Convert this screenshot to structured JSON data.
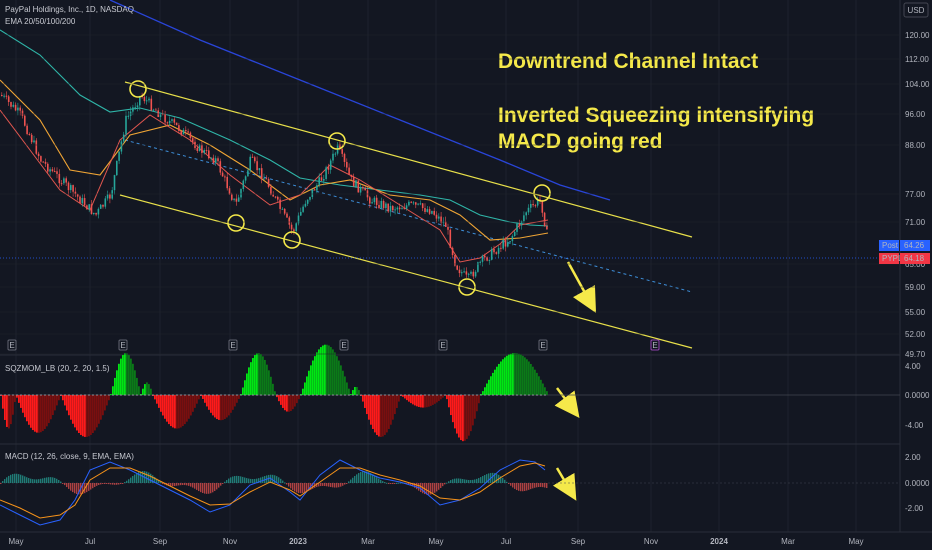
{
  "header": {
    "symbol_line": "PayPal Holdings, Inc., 1D, NASDAQ",
    "indicator_line": "EMA 20/50/100/200",
    "currency": "USD"
  },
  "annotations": {
    "line1": "Downtrend Channel Intact",
    "line2": "Inverted Squeezing intensifying",
    "line3": "MACD going red"
  },
  "price_badges": [
    {
      "label": "Post",
      "value": "64.26",
      "color": "#2962ff"
    },
    {
      "label": "PYPL",
      "value": "64.18",
      "color": "#f23645"
    }
  ],
  "colors": {
    "up": "#26a69a",
    "down": "#ef5350",
    "channel": "#e8e04a",
    "ema_fast": "#e0564f",
    "ema_mid": "#f0a535",
    "ema_slow": "#2fb5a8",
    "ema_long": "#2945d9",
    "sqz_up_strong": "#00e613",
    "sqz_up_weak": "#0b7a18",
    "sqz_dn_strong": "#ff1a1a",
    "sqz_dn_weak": "#7a0f0f"
  },
  "events": {
    "marker_label": "E"
  },
  "chart_data": [
    {
      "type": "candlestick",
      "title": "PayPal Holdings, Inc., 1D, NASDAQ",
      "y_ticks": [
        "120.00",
        "112.00",
        "104.00",
        "96.00",
        "88.00",
        "77.00",
        "71.00",
        "65.00",
        "59.00",
        "55.00",
        "52.00",
        "49.70"
      ],
      "x_ticks": [
        "May",
        "Jul",
        "Sep",
        "Nov",
        "2023",
        "Mar",
        "May",
        "Jul",
        "Sep",
        "Nov",
        "2024",
        "Mar",
        "May"
      ],
      "series_summary": [
        {
          "x": "May",
          "y": 100
        },
        {
          "x": "Jun",
          "y": 82
        },
        {
          "x": "Jul",
          "y": 70
        },
        {
          "x": "Aug",
          "y": 96
        },
        {
          "x": "Sep",
          "y": 92
        },
        {
          "x": "Oct",
          "y": 84
        },
        {
          "x": "Nov",
          "y": 75
        },
        {
          "x": "Dec",
          "y": 74
        },
        {
          "x": "2023",
          "y": 75
        },
        {
          "x": "Feb",
          "y": 88
        },
        {
          "x": "Mar",
          "y": 73
        },
        {
          "x": "Apr",
          "y": 76
        },
        {
          "x": "May",
          "y": 60
        },
        {
          "x": "Jun",
          "y": 65
        },
        {
          "x": "Jul",
          "y": 76
        },
        {
          "x": "Aug",
          "y": 64
        }
      ],
      "highlighted_points": [
        "Aug top",
        "Oct low",
        "Dec low",
        "Feb top",
        "May low",
        "Jul top"
      ]
    },
    {
      "type": "bar",
      "title": "SQZMOM_LB (20, 2, 20, 1.5)",
      "y_ticks": [
        "4.00",
        "0.0000",
        "-4.00"
      ]
    },
    {
      "type": "bar",
      "title": "MACD (12, 26, close, 9, EMA, EMA)",
      "y_ticks": [
        "2.00",
        "0.0000",
        "-2.00"
      ]
    }
  ]
}
